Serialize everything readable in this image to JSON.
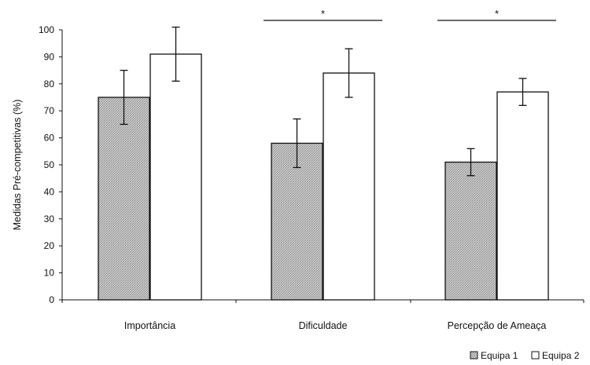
{
  "chart_data": {
    "type": "bar",
    "title": "",
    "xlabel": "",
    "ylabel": "Medidas Pré-competitivas (%)",
    "ylim": [
      0,
      100
    ],
    "yticks": [
      0,
      10,
      20,
      30,
      40,
      50,
      60,
      70,
      80,
      90,
      100
    ],
    "categories": [
      "Importância",
      "Dificuldade",
      "Percepção de Ameaça"
    ],
    "series": [
      {
        "name": "Equipa 1",
        "values": [
          75,
          58,
          51
        ],
        "error": [
          10,
          9,
          5
        ],
        "color": "#bdbdbd"
      },
      {
        "name": "Equipa 2",
        "values": [
          91,
          84,
          77
        ],
        "error": [
          10,
          9,
          5
        ],
        "color": "#ffffff"
      }
    ],
    "significance": [
      {
        "category_index": 1,
        "label": "*"
      },
      {
        "category_index": 2,
        "label": "*"
      }
    ],
    "legend_position": "bottom-right",
    "grid": false
  }
}
